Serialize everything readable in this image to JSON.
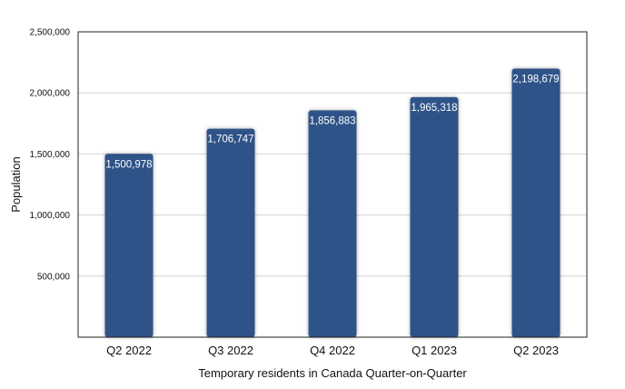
{
  "chart_data": {
    "type": "bar",
    "categories": [
      "Q2 2022",
      "Q3 2022",
      "Q4 2022",
      "Q1 2023",
      "Q2 2023"
    ],
    "values": [
      1500978,
      1706747,
      1856883,
      1965318,
      2198679
    ],
    "data_labels": [
      "1,500,978",
      "1,706,747",
      "1,856,883",
      "1,965,318",
      "2,198,679"
    ],
    "xlabel": "Temporary residents in Canada Quarter-on-Quarter",
    "ylabel": "Population",
    "ylim": [
      0,
      2500000
    ],
    "yticks": [
      500000,
      1000000,
      1500000,
      2000000,
      2500000
    ],
    "ytick_labels": [
      "500,000",
      "1,000,000",
      "1,500,000",
      "2,000,000",
      "2,500,000"
    ],
    "grid": true,
    "bar_color": "#2F5388"
  }
}
